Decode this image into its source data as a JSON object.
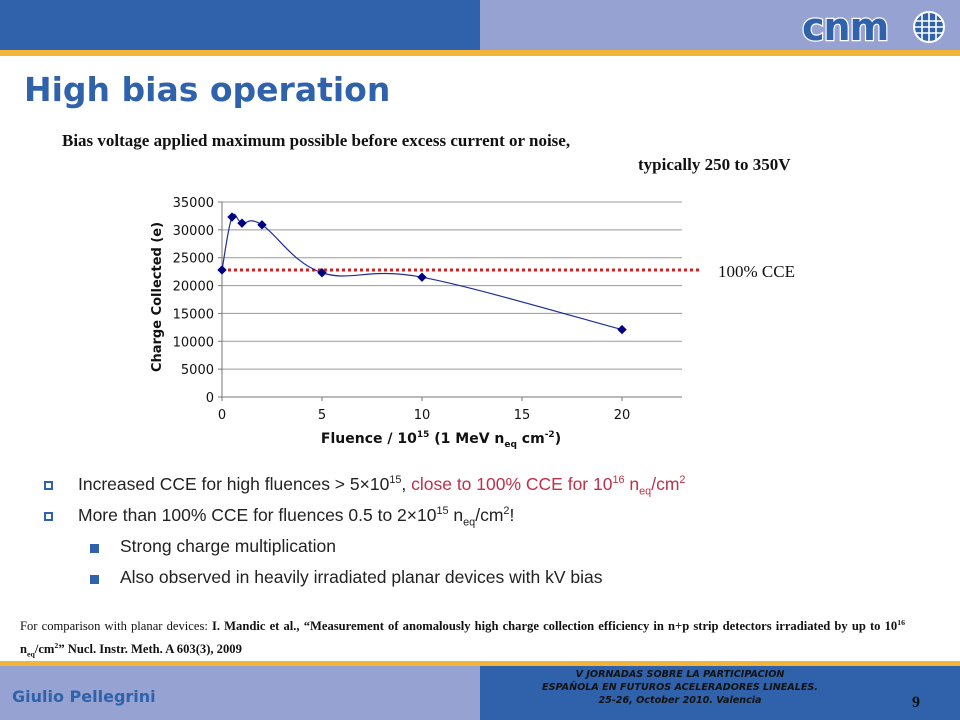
{
  "title": "High bias operation",
  "subtitle_line1": "Bias voltage applied maximum possible before excess current or noise,",
  "subtitle_line2": "typically 250 to 350V",
  "logo_text": "cnm",
  "cce_line_label": "100% CCE",
  "bullets": {
    "b1_text": "Increased CCE for high fluences > 5×10",
    "b1_exp": "15",
    "b1_comma": ", ",
    "b1_red": "close to 100% CCE for 10",
    "b1_red_exp": "16",
    "b1_red_n": " n",
    "b1_red_sub": "eq",
    "b1_red_unit": "/cm",
    "b1_red_unit_exp": "2",
    "b2_text": "More than 100% CCE for fluences 0.5 to 2×10",
    "b2_exp": "15",
    "b2_n": " n",
    "b2_sub": "eq",
    "b2_unit": "/cm",
    "b2_unit_exp": "2",
    "b2_end": "!",
    "sub1": "Strong charge multiplication",
    "sub2": "Also observed in heavily irradiated planar devices with kV bias"
  },
  "footnote": {
    "lead": "For comparison with planar devices: ",
    "ref_a": "I. Mandic et al., “Measurement of anomalously high charge collection efficiency in n+p strip detectors irradiated by up to 10",
    "ref_exp": "16",
    "ref_n": " n",
    "ref_sub": "eq",
    "ref_unit": "/cm",
    "ref_unit_exp": "2",
    "ref_b": "” Nucl. Instr. Meth. A 603(3), 2009"
  },
  "footer": {
    "author": "Giulio Pellegrini",
    "conference_line1": "V JORNADAS SOBRE LA PARTICIPACION",
    "conference_line2": "ESPAÑOLA EN FUTUROS ACELERADORES LINEALES.",
    "conference_line3": "25-26, October 2010. Valencia",
    "page_number": "9"
  },
  "colors": {
    "brand_blue": "#2f62aa",
    "light_blue": "#96a2d2",
    "accent_orange": "#f3b43a",
    "cce_line_red": "#d22020",
    "series_navy": "#000080"
  },
  "chart_data": {
    "type": "scatter",
    "xlabel": "Fluence / 10^15 (1 MeV n_eq cm^-2)",
    "xlabel_parts": {
      "a": "Fluence / 10",
      "a_exp": "15",
      "b": " (1 MeV n",
      "b_sub": "eq",
      "c": " cm",
      "c_exp": "-2",
      "d": ")"
    },
    "ylabel": "Charge Collected (e)",
    "x_ticks": [
      "0",
      "5",
      "10",
      "15",
      "20"
    ],
    "y_ticks": [
      "0",
      "5000",
      "10000",
      "15000",
      "20000",
      "25000",
      "30000",
      "35000"
    ],
    "xlim": [
      0,
      23
    ],
    "ylim": [
      0,
      35000
    ],
    "grid": "horizontal",
    "series": [
      {
        "values": [
          {
            "x": 0,
            "y": 22800
          },
          {
            "x": 0.5,
            "y": 32300
          },
          {
            "x": 1,
            "y": 31200
          },
          {
            "x": 2,
            "y": 30900
          },
          {
            "x": 5,
            "y": 22300
          },
          {
            "x": 10,
            "y": 21500
          },
          {
            "x": 20,
            "y": 12100
          }
        ]
      }
    ],
    "reference_line": {
      "y": 22800,
      "label": "100% CCE",
      "style": "dotted",
      "color": "#d22020"
    }
  }
}
